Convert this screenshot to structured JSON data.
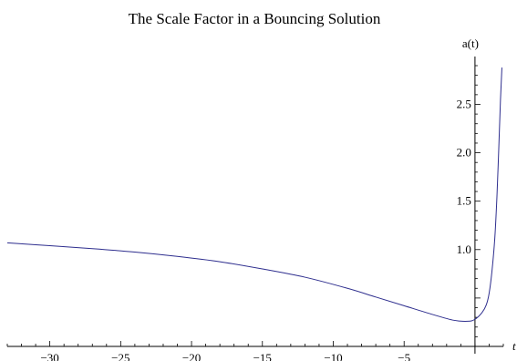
{
  "chart_data": {
    "type": "line",
    "title": "The Scale Factor in a Bouncing Solution",
    "xlabel": "t",
    "ylabel": "a(t)",
    "xlim": [
      -33,
      2
    ],
    "ylim": [
      0.0,
      2.9
    ],
    "x_ticks": [
      -30,
      -25,
      -20,
      -15,
      -10,
      -5
    ],
    "x_tick_labels": [
      "−30",
      "−25",
      "−20",
      "−15",
      "−10",
      "−5"
    ],
    "y_ticks": [
      1.0,
      1.5,
      2.0,
      2.5
    ],
    "y_tick_labels": [
      "1.0",
      "1.5",
      "2.0",
      "2.5"
    ],
    "grid": false,
    "series": [
      {
        "color": "#2e2e8e",
        "x": [
          -33,
          -30,
          -27,
          -24,
          -21,
          -18,
          -15,
          -12,
          -9,
          -7,
          -5,
          -3,
          -1.5,
          -0.5,
          0,
          0.5,
          0.8,
          1.0,
          1.2,
          1.4,
          1.55,
          1.68,
          1.8,
          1.9
        ],
        "y": [
          1.07,
          1.04,
          1.01,
          0.975,
          0.93,
          0.875,
          0.8,
          0.715,
          0.6,
          0.51,
          0.42,
          0.33,
          0.27,
          0.26,
          0.28,
          0.35,
          0.43,
          0.55,
          0.78,
          1.12,
          1.55,
          2.05,
          2.55,
          2.88
        ]
      }
    ]
  }
}
